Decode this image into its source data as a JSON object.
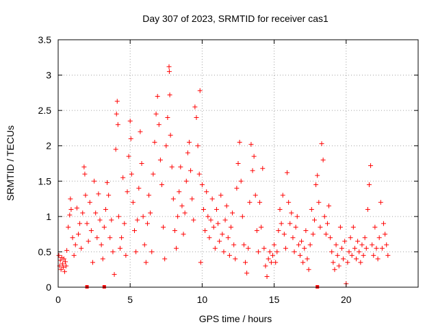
{
  "chart_data": {
    "type": "scatter",
    "title": "Day 307 of 2023, SRMTID for receiver cas1",
    "xlabel": "GPS time / hours",
    "ylabel": "SRMTID / TECUs",
    "xlim": [
      0,
      25
    ],
    "ylim": [
      0,
      3.5
    ],
    "x_ticks": [
      0,
      5,
      10,
      15,
      20
    ],
    "x_tick_labels": [
      "0",
      "5",
      "10",
      "15",
      "20"
    ],
    "y_ticks": [
      0,
      0.5,
      1,
      1.5,
      2,
      2.5,
      3,
      3.5
    ],
    "y_tick_labels": [
      "0",
      "0.5",
      "1",
      "1.5",
      "2",
      "2.5",
      "3",
      "3.5"
    ],
    "grid": true,
    "marker": "+",
    "color": "#ff0000",
    "series": [
      {
        "name": "SRMTID",
        "points": [
          [
            0.05,
            0.45
          ],
          [
            0.1,
            0.3
          ],
          [
            0.15,
            0.38
          ],
          [
            0.2,
            0.25
          ],
          [
            0.25,
            0.42
          ],
          [
            0.3,
            0.33
          ],
          [
            0.35,
            0.28
          ],
          [
            0.4,
            0.4
          ],
          [
            0.45,
            0.22
          ],
          [
            0.5,
            0.36
          ],
          [
            0.55,
            0.3
          ],
          [
            0.6,
            0.52
          ],
          [
            0.7,
            0.85
          ],
          [
            0.8,
            1.02
          ],
          [
            0.85,
            1.25
          ],
          [
            0.9,
            1.1
          ],
          [
            1.0,
            0.7
          ],
          [
            1.1,
            0.45
          ],
          [
            1.2,
            0.6
          ],
          [
            1.3,
            1.12
          ],
          [
            1.4,
            0.75
          ],
          [
            1.5,
            0.9
          ],
          [
            1.6,
            0.55
          ],
          [
            1.7,
            1.05
          ],
          [
            1.8,
            1.7
          ],
          [
            1.85,
            1.6
          ],
          [
            1.9,
            1.3
          ],
          [
            2.0,
            0.9
          ],
          [
            2.1,
            0.65
          ],
          [
            2.2,
            1.2
          ],
          [
            2.3,
            0.8
          ],
          [
            2.4,
            0.35
          ],
          [
            2.5,
            1.5
          ],
          [
            2.6,
            1.05
          ],
          [
            2.7,
            0.7
          ],
          [
            2.8,
            1.32
          ],
          [
            2.9,
            0.95
          ],
          [
            3.0,
            0.6
          ],
          [
            3.1,
            0.4
          ],
          [
            3.2,
            0.85
          ],
          [
            3.3,
            1.1
          ],
          [
            3.4,
            1.48
          ],
          [
            3.5,
            1.3
          ],
          [
            3.6,
            0.7
          ],
          [
            3.7,
            0.95
          ],
          [
            3.8,
            0.5
          ],
          [
            3.9,
            0.18
          ],
          [
            4.0,
            1.95
          ],
          [
            4.05,
            2.45
          ],
          [
            4.1,
            2.63
          ],
          [
            4.15,
            2.3
          ],
          [
            4.2,
            1.0
          ],
          [
            4.3,
            0.55
          ],
          [
            4.4,
            0.7
          ],
          [
            4.5,
            1.55
          ],
          [
            4.6,
            0.9
          ],
          [
            4.7,
            0.45
          ],
          [
            4.8,
            1.35
          ],
          [
            4.9,
            1.85
          ],
          [
            5.0,
            2.35
          ],
          [
            5.05,
            2.1
          ],
          [
            5.1,
            1.6
          ],
          [
            5.2,
            1.2
          ],
          [
            5.3,
            0.8
          ],
          [
            5.4,
            0.5
          ],
          [
            5.5,
            0.95
          ],
          [
            5.6,
            1.4
          ],
          [
            5.7,
            2.2
          ],
          [
            5.8,
            1.75
          ],
          [
            5.9,
            1.0
          ],
          [
            6.0,
            0.6
          ],
          [
            6.1,
            0.35
          ],
          [
            6.2,
            0.9
          ],
          [
            6.3,
            1.3
          ],
          [
            6.4,
            1.05
          ],
          [
            6.5,
            0.5
          ],
          [
            6.6,
            1.6
          ],
          [
            6.7,
            2.05
          ],
          [
            6.8,
            2.45
          ],
          [
            6.9,
            2.7
          ],
          [
            7.0,
            2.3
          ],
          [
            7.1,
            1.8
          ],
          [
            7.2,
            1.45
          ],
          [
            7.3,
            0.85
          ],
          [
            7.4,
            0.4
          ],
          [
            7.5,
            2.0
          ],
          [
            7.6,
            2.4
          ],
          [
            7.7,
            3.12
          ],
          [
            7.72,
            3.05
          ],
          [
            7.75,
            2.72
          ],
          [
            7.8,
            2.15
          ],
          [
            7.9,
            1.7
          ],
          [
            8.0,
            1.25
          ],
          [
            8.1,
            0.8
          ],
          [
            8.2,
            0.55
          ],
          [
            8.3,
            1.0
          ],
          [
            8.4,
            1.35
          ],
          [
            8.5,
            1.7
          ],
          [
            8.6,
            1.15
          ],
          [
            8.7,
            0.75
          ],
          [
            8.8,
            1.05
          ],
          [
            8.9,
            1.5
          ],
          [
            9.0,
            1.9
          ],
          [
            9.1,
            2.05
          ],
          [
            9.2,
            1.65
          ],
          [
            9.3,
            1.25
          ],
          [
            9.4,
            0.95
          ],
          [
            9.5,
            2.55
          ],
          [
            9.6,
            2.4
          ],
          [
            9.7,
            2.0
          ],
          [
            9.8,
            1.6
          ],
          [
            9.85,
            2.78
          ],
          [
            9.9,
            0.35
          ],
          [
            10.0,
            1.45
          ],
          [
            10.1,
            1.1
          ],
          [
            10.2,
            0.8
          ],
          [
            10.3,
            1.35
          ],
          [
            10.4,
            1.0
          ],
          [
            10.5,
            0.7
          ],
          [
            10.6,
            0.95
          ],
          [
            10.7,
            1.25
          ],
          [
            10.8,
            0.85
          ],
          [
            10.9,
            0.55
          ],
          [
            11.0,
            1.1
          ],
          [
            11.1,
            0.9
          ],
          [
            11.2,
            0.65
          ],
          [
            11.3,
            1.3
          ],
          [
            11.4,
            0.75
          ],
          [
            11.5,
            0.5
          ],
          [
            11.6,
            0.95
          ],
          [
            11.7,
            1.15
          ],
          [
            11.8,
            0.7
          ],
          [
            11.9,
            0.45
          ],
          [
            12.0,
            0.85
          ],
          [
            12.1,
            1.05
          ],
          [
            12.2,
            0.6
          ],
          [
            12.3,
            0.4
          ],
          [
            12.4,
            1.4
          ],
          [
            12.5,
            1.75
          ],
          [
            12.6,
            2.05
          ],
          [
            12.7,
            1.5
          ],
          [
            12.8,
            1.0
          ],
          [
            12.9,
            0.6
          ],
          [
            13.0,
            0.35
          ],
          [
            13.1,
            0.2
          ],
          [
            13.2,
            0.55
          ],
          [
            13.3,
            1.2
          ],
          [
            13.4,
            2.02
          ],
          [
            13.5,
            1.65
          ],
          [
            13.6,
            1.85
          ],
          [
            13.7,
            1.3
          ],
          [
            13.8,
            0.8
          ],
          [
            13.9,
            0.5
          ],
          [
            14.0,
            1.2
          ],
          [
            14.1,
            0.85
          ],
          [
            14.2,
            1.68
          ],
          [
            14.3,
            0.55
          ],
          [
            14.4,
            0.3
          ],
          [
            14.5,
            0.15
          ],
          [
            14.6,
            0.4
          ],
          [
            14.7,
            0.5
          ],
          [
            14.8,
            0.35
          ],
          [
            14.9,
            0.45
          ],
          [
            15.0,
            0.6
          ],
          [
            15.1,
            0.35
          ],
          [
            15.2,
            0.5
          ],
          [
            15.3,
            0.8
          ],
          [
            15.4,
            1.1
          ],
          [
            15.5,
            0.9
          ],
          [
            15.6,
            1.3
          ],
          [
            15.7,
            0.75
          ],
          [
            15.8,
            0.55
          ],
          [
            15.9,
            1.62
          ],
          [
            16.0,
            1.2
          ],
          [
            16.1,
            0.9
          ],
          [
            16.2,
            1.05
          ],
          [
            16.3,
            0.7
          ],
          [
            16.4,
            0.5
          ],
          [
            16.5,
            0.85
          ],
          [
            16.6,
            1.0
          ],
          [
            16.7,
            0.6
          ],
          [
            16.8,
            0.45
          ],
          [
            16.9,
            0.65
          ],
          [
            17.0,
            0.35
          ],
          [
            17.1,
            0.55
          ],
          [
            17.2,
            0.8
          ],
          [
            17.3,
            0.4
          ],
          [
            17.4,
            0.25
          ],
          [
            17.5,
            0.6
          ],
          [
            17.6,
            1.1
          ],
          [
            17.7,
            0.75
          ],
          [
            17.8,
            0.95
          ],
          [
            17.9,
            1.45
          ],
          [
            18.0,
            1.58
          ],
          [
            18.1,
            1.2
          ],
          [
            18.2,
            0.85
          ],
          [
            18.3,
            2.03
          ],
          [
            18.4,
            1.8
          ],
          [
            18.5,
            1.0
          ],
          [
            18.6,
            0.75
          ],
          [
            18.7,
            0.9
          ],
          [
            18.8,
            1.15
          ],
          [
            18.9,
            0.7
          ],
          [
            19.0,
            0.5
          ],
          [
            19.1,
            0.35
          ],
          [
            19.2,
            0.25
          ],
          [
            19.3,
            0.6
          ],
          [
            19.4,
            0.45
          ],
          [
            19.5,
            0.3
          ],
          [
            19.6,
            0.85
          ],
          [
            19.7,
            0.55
          ],
          [
            19.8,
            0.4
          ],
          [
            19.9,
            0.65
          ],
          [
            20.0,
            0.05
          ],
          [
            20.1,
            0.35
          ],
          [
            20.2,
            0.5
          ],
          [
            20.3,
            0.7
          ],
          [
            20.4,
            0.45
          ],
          [
            20.5,
            0.85
          ],
          [
            20.6,
            0.55
          ],
          [
            20.7,
            0.4
          ],
          [
            20.8,
            0.65
          ],
          [
            20.9,
            0.5
          ],
          [
            21.0,
            0.35
          ],
          [
            21.1,
            0.6
          ],
          [
            21.2,
            0.45
          ],
          [
            21.3,
            0.7
          ],
          [
            21.4,
            0.55
          ],
          [
            21.5,
            1.1
          ],
          [
            21.6,
            1.45
          ],
          [
            21.7,
            1.72
          ],
          [
            21.8,
            0.6
          ],
          [
            21.9,
            0.45
          ],
          [
            22.0,
            0.85
          ],
          [
            22.1,
            0.55
          ],
          [
            22.2,
            0.4
          ],
          [
            22.3,
            0.7
          ],
          [
            22.4,
            1.2
          ],
          [
            22.5,
            0.55
          ],
          [
            22.6,
            0.9
          ],
          [
            22.7,
            0.75
          ],
          [
            22.8,
            0.6
          ],
          [
            22.9,
            0.45
          ]
        ]
      }
    ],
    "zero_markers": [
      2.0,
      3.2,
      18.0
    ]
  }
}
